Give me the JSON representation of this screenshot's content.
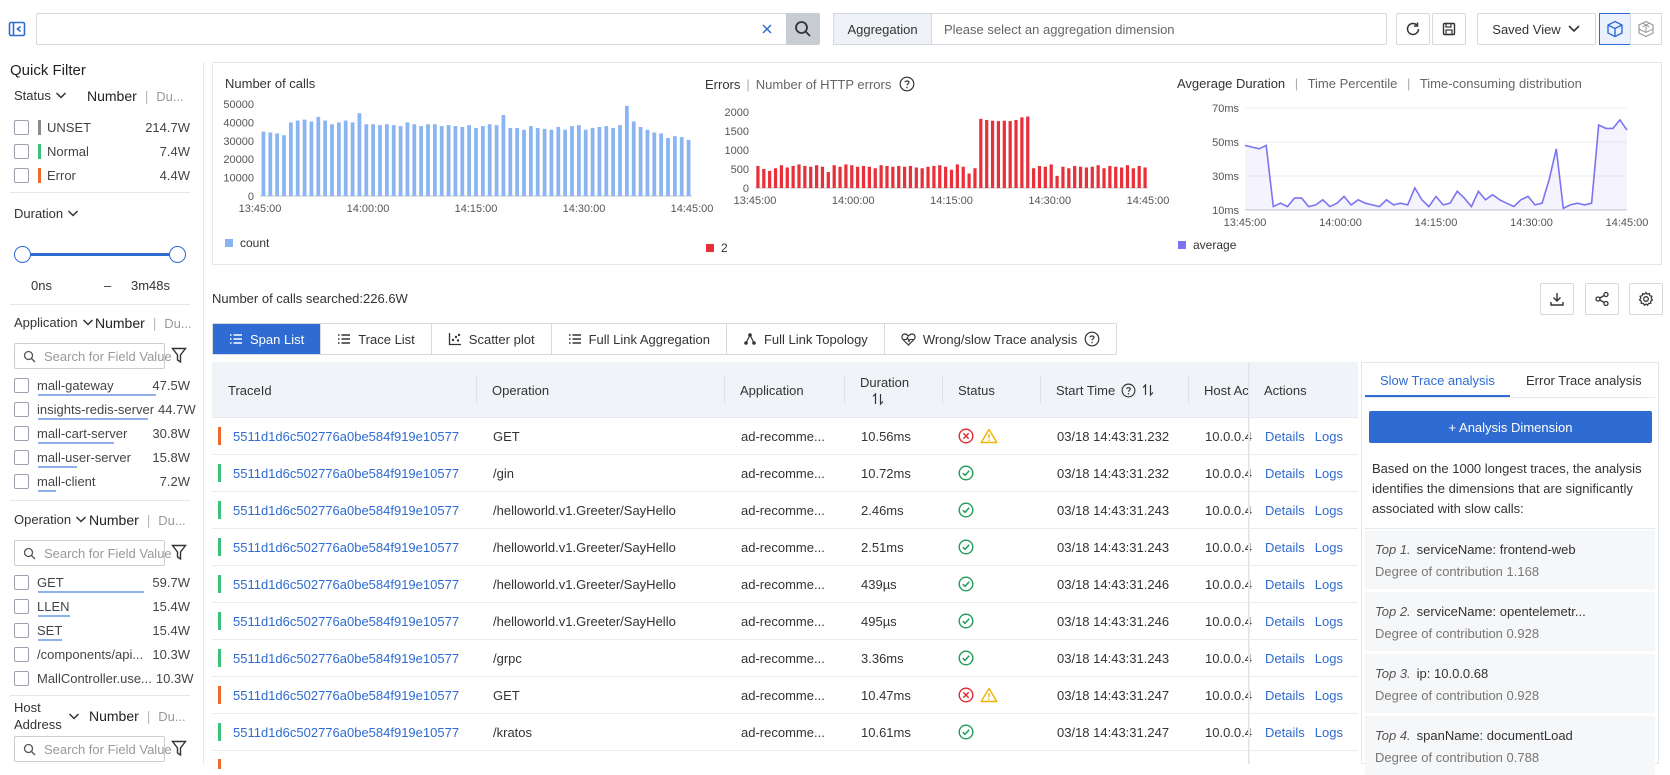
{
  "topbar": {
    "search_value": "",
    "aggregation_label": "Aggregation",
    "aggregation_placeholder": "Please select an aggregation dimension",
    "saved_view_label": "Saved View"
  },
  "quick_filter": {
    "title": "Quick Filter",
    "number_label": "Number",
    "duration_short": "Du...",
    "status": {
      "header": "Status",
      "items": [
        {
          "label": "UNSET",
          "count": "214.7W",
          "color": "#8c8c8c"
        },
        {
          "label": "Normal",
          "count": "7.4W",
          "color": "#3cc07a"
        },
        {
          "label": "Error",
          "count": "4.4W",
          "color": "#f06a2b"
        }
      ]
    },
    "duration": {
      "header": "Duration",
      "min": "0ns",
      "dash": "–",
      "max": "3m48s"
    },
    "application": {
      "header": "Application",
      "search_placeholder": "Search for Field Value",
      "items": [
        {
          "label": "mall-gateway",
          "count": "47.5W"
        },
        {
          "label": "insights-redis-server",
          "count": "44.7W"
        },
        {
          "label": "mall-cart-server",
          "count": "30.8W"
        },
        {
          "label": "mall-user-server",
          "count": "15.8W"
        },
        {
          "label": "mall-client",
          "count": "7.2W"
        }
      ]
    },
    "operation": {
      "header": "Operation",
      "search_placeholder": "Search for Field Value",
      "items": [
        {
          "label": "GET",
          "count": "59.7W"
        },
        {
          "label": "LLEN",
          "count": "15.4W"
        },
        {
          "label": "SET",
          "count": "15.4W"
        },
        {
          "label": "/components/api...",
          "count": "10.3W"
        },
        {
          "label": "MallController.use...",
          "count": "10.3W"
        }
      ]
    },
    "host": {
      "header_line1": "Host",
      "header_line2": "Address",
      "search_placeholder": "Search for Field Value"
    }
  },
  "charts_header": {
    "calls_title": "Number of calls",
    "errors_title": "Errors",
    "errors_sub": "Number of HTTP errors",
    "avg_title": "Avgerage Duration",
    "avg_tab2": "Time Percentile",
    "avg_tab3": "Time-consuming distribution",
    "calls_legend": "count",
    "errors_legend": "2",
    "avg_legend": "average"
  },
  "chart_data": [
    {
      "type": "bar",
      "title": "Number of calls",
      "legend": [
        "count"
      ],
      "color": "#8ab4f4",
      "ylim": [
        0,
        50000
      ],
      "yticks": [
        "50000",
        "40000",
        "30000",
        "20000",
        "10000",
        "0"
      ],
      "xticks": [
        "13:45:00",
        "14:00:00",
        "14:15:00",
        "14:30:00",
        "14:45:00"
      ],
      "values": [
        35000,
        34500,
        34000,
        33000,
        40000,
        41000,
        41500,
        40500,
        43000,
        41000,
        39000,
        40000,
        41000,
        40000,
        45000,
        39000,
        39000,
        38500,
        39000,
        38500,
        38000,
        40000,
        39000,
        38000,
        39000,
        39000,
        38000,
        38500,
        38000,
        37500,
        38500,
        37000,
        38000,
        39000,
        38500,
        44000,
        37000,
        37000,
        36000,
        38000,
        37000,
        36500,
        36000,
        37500,
        36000,
        38000,
        38500,
        36000,
        37000,
        37500,
        38000,
        37000,
        38500,
        49000,
        40500,
        37500,
        36000,
        34500,
        34000,
        31500,
        32500,
        32000,
        30500
      ]
    },
    {
      "type": "bar",
      "title": "Errors",
      "legend": [
        "2"
      ],
      "color": "#e8303a",
      "ylim": [
        0,
        2000
      ],
      "yticks": [
        "2000",
        "1500",
        "1000",
        "500",
        "0"
      ],
      "xticks": [
        "13:45:00",
        "14:00:00",
        "14:15:00",
        "14:30:00",
        "14:45:00"
      ],
      "values": [
        580,
        500,
        450,
        520,
        600,
        540,
        580,
        620,
        580,
        560,
        600,
        560,
        420,
        600,
        560,
        620,
        600,
        560,
        580,
        560,
        520,
        600,
        580,
        560,
        580,
        560,
        580,
        540,
        520,
        560,
        580,
        600,
        560,
        480,
        620,
        560,
        380,
        520,
        1820,
        1790,
        1770,
        1760,
        1770,
        1760,
        1790,
        1860,
        1880,
        520,
        580,
        560,
        620,
        320,
        560,
        520,
        580,
        560,
        540,
        560,
        600,
        520,
        580,
        560,
        540,
        600,
        520,
        580,
        540
      ]
    },
    {
      "type": "line",
      "title": "Avgerage Duration",
      "legend": [
        "average"
      ],
      "color": "#7b74f0",
      "ylim": [
        10,
        70
      ],
      "yticks": [
        "70ms",
        "50ms",
        "30ms",
        "10ms"
      ],
      "xticks": [
        "13:45:00",
        "14:00:00",
        "14:15:00",
        "14:30:00",
        "14:45:00"
      ],
      "values": [
        48,
        47,
        46,
        48,
        12,
        14,
        12,
        17,
        17,
        12,
        13,
        16,
        12,
        14,
        18,
        13,
        16,
        14,
        13,
        12,
        16,
        13,
        14,
        13,
        23,
        16,
        12,
        18,
        13,
        14,
        21,
        17,
        12,
        21,
        16,
        19,
        16,
        14,
        12,
        16,
        18,
        13,
        14,
        28,
        46,
        11,
        13,
        14,
        13,
        14,
        60,
        58,
        58,
        63,
        57
      ]
    }
  ],
  "table": {
    "searched_text": "Number of calls searched:226.6W",
    "tabs": [
      {
        "label": "Span List",
        "icon": "list-icon"
      },
      {
        "label": "Trace List",
        "icon": "list-icon"
      },
      {
        "label": "Scatter plot",
        "icon": "scatter-icon"
      },
      {
        "label": "Full Link Aggregation",
        "icon": "list-icon"
      },
      {
        "label": "Full Link Topology",
        "icon": "topology-icon"
      },
      {
        "label": "Wrong/slow Trace analysis",
        "icon": "heart-pulse-icon"
      }
    ],
    "columns": {
      "traceid": "TraceId",
      "operation": "Operation",
      "application": "Application",
      "duration": "Duration",
      "status": "Status",
      "start_time": "Start Time",
      "host": "Host Ac",
      "actions": "Actions"
    },
    "details_label": "Details",
    "logs_label": "Logs",
    "rows": [
      {
        "trace_id": "5511d1d6c502776a0be584f919e10577",
        "operation": "GET",
        "application": "ad-recomme...",
        "duration": "10.56ms",
        "status": "error",
        "start_time": "03/18 14:43:31.232",
        "host": "10.0.0.4",
        "bar": "#f06a2b"
      },
      {
        "trace_id": "5511d1d6c502776a0be584f919e10577",
        "operation": "/gin",
        "application": "ad-recomme...",
        "duration": "10.72ms",
        "status": "ok",
        "start_time": "03/18 14:43:31.232",
        "host": "10.0.0.4",
        "bar": "#3cc07a"
      },
      {
        "trace_id": "5511d1d6c502776a0be584f919e10577",
        "operation": "/helloworld.v1.Greeter/SayHello",
        "application": "ad-recomme...",
        "duration": "2.46ms",
        "status": "ok",
        "start_time": "03/18 14:43:31.243",
        "host": "10.0.0.4",
        "bar": "#3cc07a"
      },
      {
        "trace_id": "5511d1d6c502776a0be584f919e10577",
        "operation": "/helloworld.v1.Greeter/SayHello",
        "application": "ad-recomme...",
        "duration": "2.51ms",
        "status": "ok",
        "start_time": "03/18 14:43:31.243",
        "host": "10.0.0.4",
        "bar": "#3cc07a"
      },
      {
        "trace_id": "5511d1d6c502776a0be584f919e10577",
        "operation": "/helloworld.v1.Greeter/SayHello",
        "application": "ad-recomme...",
        "duration": "439µs",
        "status": "ok",
        "start_time": "03/18 14:43:31.246",
        "host": "10.0.0.4",
        "bar": "#3cc07a"
      },
      {
        "trace_id": "5511d1d6c502776a0be584f919e10577",
        "operation": "/helloworld.v1.Greeter/SayHello",
        "application": "ad-recomme...",
        "duration": "495µs",
        "status": "ok",
        "start_time": "03/18 14:43:31.246",
        "host": "10.0.0.4",
        "bar": "#3cc07a"
      },
      {
        "trace_id": "5511d1d6c502776a0be584f919e10577",
        "operation": "/grpc",
        "application": "ad-recomme...",
        "duration": "3.36ms",
        "status": "ok",
        "start_time": "03/18 14:43:31.243",
        "host": "10.0.0.4",
        "bar": "#3cc07a"
      },
      {
        "trace_id": "5511d1d6c502776a0be584f919e10577",
        "operation": "GET",
        "application": "ad-recomme...",
        "duration": "10.47ms",
        "status": "error",
        "start_time": "03/18 14:43:31.247",
        "host": "10.0.0.4",
        "bar": "#f06a2b"
      },
      {
        "trace_id": "5511d1d6c502776a0be584f919e10577",
        "operation": "/kratos",
        "application": "ad-recomme...",
        "duration": "10.61ms",
        "status": "ok",
        "start_time": "03/18 14:43:31.247",
        "host": "10.0.0.4",
        "bar": "#3cc07a"
      }
    ]
  },
  "analysis": {
    "tab_slow": "Slow Trace analysis",
    "tab_error": "Error Trace analysis",
    "add_button": "+ Analysis Dimension",
    "description": "Based on the 1000 longest traces, the analysis identifies the dimensions that are significantly associated with slow calls:",
    "items": [
      {
        "rank": "Top 1.",
        "text": "serviceName: frontend-web",
        "contribution": "Degree of contribution 1.168"
      },
      {
        "rank": "Top 2.",
        "text": "serviceName: opentelemetr...",
        "contribution": "Degree of contribution 0.928"
      },
      {
        "rank": "Top 3.",
        "text": "ip: 10.0.0.68",
        "contribution": "Degree of contribution 0.928"
      },
      {
        "rank": "Top 4.",
        "text": "spanName: documentLoad",
        "contribution": "Degree of contribution 0.788"
      }
    ]
  }
}
